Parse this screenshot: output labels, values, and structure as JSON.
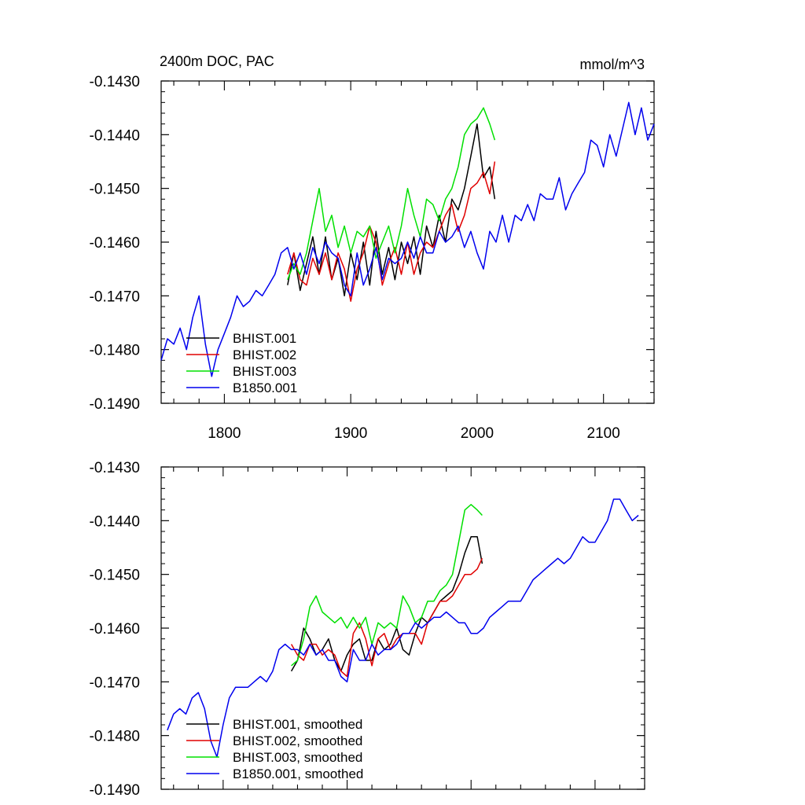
{
  "figure": {
    "title_left": "2400m DOC, PAC",
    "title_right": "mmol/m^3"
  },
  "colors": {
    "BHIST.001": "#000000",
    "BHIST.002": "#e00000",
    "BHIST.003": "#00e000",
    "B1850.001": "#0000ee"
  },
  "chart_data": [
    {
      "type": "line",
      "panel": "raw",
      "xlim": [
        1750,
        2140
      ],
      "ylim": [
        -0.149,
        -0.143
      ],
      "x_ticks": [
        "1800",
        "1900",
        "2000",
        "2100"
      ],
      "y_ticks": [
        "-0.1430",
        "-0.1440",
        "-0.1450",
        "-0.1460",
        "-0.1470",
        "-0.1480",
        "-0.1490"
      ],
      "legend": {
        "placement": "lower-left",
        "entries": [
          "BHIST.001",
          "BHIST.002",
          "BHIST.003",
          "B1850.001"
        ]
      },
      "series": [
        {
          "name": "BHIST.001",
          "color": "#000000",
          "x": [
            1850,
            1855,
            1860,
            1865,
            1870,
            1875,
            1880,
            1885,
            1890,
            1895,
            1900,
            1905,
            1910,
            1915,
            1920,
            1925,
            1930,
            1935,
            1940,
            1945,
            1950,
            1955,
            1960,
            1965,
            1970,
            1975,
            1980,
            1985,
            1990,
            1995,
            2000,
            2005,
            2010,
            2014
          ],
          "y": [
            -0.1468,
            -0.1462,
            -0.1469,
            -0.1464,
            -0.1459,
            -0.1466,
            -0.1459,
            -0.1467,
            -0.1463,
            -0.147,
            -0.1462,
            -0.1467,
            -0.146,
            -0.1468,
            -0.1458,
            -0.1466,
            -0.1461,
            -0.1467,
            -0.146,
            -0.1464,
            -0.1459,
            -0.1466,
            -0.1457,
            -0.1461,
            -0.1455,
            -0.146,
            -0.1452,
            -0.1454,
            -0.145,
            -0.1444,
            -0.1438,
            -0.1448,
            -0.1446,
            -0.1452
          ]
        },
        {
          "name": "BHIST.002",
          "color": "#e00000",
          "x": [
            1850,
            1855,
            1860,
            1865,
            1870,
            1875,
            1880,
            1885,
            1890,
            1895,
            1900,
            1905,
            1910,
            1915,
            1920,
            1925,
            1930,
            1935,
            1940,
            1945,
            1950,
            1955,
            1960,
            1965,
            1970,
            1975,
            1980,
            1985,
            1990,
            1995,
            2000,
            2005,
            2010,
            2014
          ],
          "y": [
            -0.1466,
            -0.1462,
            -0.1467,
            -0.1468,
            -0.1463,
            -0.1466,
            -0.1462,
            -0.1467,
            -0.1462,
            -0.1465,
            -0.1471,
            -0.1465,
            -0.1462,
            -0.1457,
            -0.146,
            -0.1468,
            -0.1464,
            -0.1461,
            -0.1466,
            -0.146,
            -0.1466,
            -0.1462,
            -0.146,
            -0.1461,
            -0.1458,
            -0.1455,
            -0.1453,
            -0.1458,
            -0.1455,
            -0.145,
            -0.1449,
            -0.1447,
            -0.1451,
            -0.1445
          ]
        },
        {
          "name": "BHIST.003",
          "color": "#00e000",
          "x": [
            1850,
            1855,
            1860,
            1865,
            1870,
            1875,
            1880,
            1885,
            1890,
            1895,
            1900,
            1905,
            1910,
            1915,
            1920,
            1925,
            1930,
            1935,
            1940,
            1945,
            1950,
            1955,
            1960,
            1965,
            1970,
            1975,
            1980,
            1985,
            1990,
            1995,
            2000,
            2005,
            2010,
            2014
          ],
          "y": [
            -0.1467,
            -0.1464,
            -0.1466,
            -0.1462,
            -0.1456,
            -0.145,
            -0.1458,
            -0.1455,
            -0.1461,
            -0.1457,
            -0.1462,
            -0.1458,
            -0.1459,
            -0.1457,
            -0.1463,
            -0.146,
            -0.1457,
            -0.1462,
            -0.1457,
            -0.145,
            -0.1455,
            -0.1459,
            -0.1452,
            -0.1453,
            -0.1456,
            -0.1452,
            -0.145,
            -0.1446,
            -0.144,
            -0.1438,
            -0.1437,
            -0.1435,
            -0.1438,
            -0.1441
          ]
        },
        {
          "name": "B1850.001",
          "color": "#0000ee",
          "x": [
            1750,
            1755,
            1760,
            1765,
            1770,
            1775,
            1780,
            1785,
            1790,
            1795,
            1800,
            1805,
            1810,
            1815,
            1820,
            1825,
            1830,
            1835,
            1840,
            1845,
            1850,
            1855,
            1860,
            1865,
            1870,
            1875,
            1880,
            1885,
            1890,
            1895,
            1900,
            1905,
            1910,
            1915,
            1920,
            1925,
            1930,
            1935,
            1940,
            1945,
            1950,
            1955,
            1960,
            1965,
            1970,
            1975,
            1980,
            1985,
            1990,
            1995,
            2000,
            2005,
            2010,
            2015,
            2020,
            2025,
            2030,
            2035,
            2040,
            2045,
            2050,
            2055,
            2060,
            2065,
            2070,
            2075,
            2080,
            2085,
            2090,
            2095,
            2100,
            2105,
            2110,
            2115,
            2120,
            2125,
            2130,
            2135,
            2140
          ],
          "y": [
            -0.1482,
            -0.1478,
            -0.1479,
            -0.1476,
            -0.148,
            -0.1474,
            -0.147,
            -0.1479,
            -0.1485,
            -0.148,
            -0.1477,
            -0.1474,
            -0.147,
            -0.1472,
            -0.1471,
            -0.1469,
            -0.147,
            -0.1468,
            -0.1466,
            -0.1462,
            -0.1461,
            -0.1465,
            -0.1462,
            -0.1466,
            -0.1461,
            -0.1464,
            -0.146,
            -0.1462,
            -0.1463,
            -0.1468,
            -0.147,
            -0.1462,
            -0.1468,
            -0.1465,
            -0.1461,
            -0.1467,
            -0.1463,
            -0.1464,
            -0.1463,
            -0.146,
            -0.1463,
            -0.1459,
            -0.1462,
            -0.1462,
            -0.1458,
            -0.146,
            -0.1459,
            -0.1457,
            -0.1461,
            -0.1458,
            -0.1462,
            -0.1465,
            -0.1458,
            -0.146,
            -0.1455,
            -0.146,
            -0.1455,
            -0.1456,
            -0.1453,
            -0.1456,
            -0.1451,
            -0.1452,
            -0.1452,
            -0.1448,
            -0.1454,
            -0.1451,
            -0.1449,
            -0.1447,
            -0.1441,
            -0.1442,
            -0.1446,
            -0.144,
            -0.1444,
            -0.1439,
            -0.1434,
            -0.144,
            -0.1435,
            -0.1441,
            -0.1438
          ]
        }
      ]
    },
    {
      "type": "line",
      "panel": "smoothed",
      "xlim": [
        1750,
        2140
      ],
      "ylim": [
        -0.149,
        -0.143
      ],
      "y_ticks": [
        "-0.1430",
        "-0.1440",
        "-0.1450",
        "-0.1460",
        "-0.1470",
        "-0.1480",
        "-0.1490"
      ],
      "legend": {
        "placement": "lower-left",
        "entries": [
          "BHIST.001, smoothed",
          "BHIST.002, smoothed",
          "BHIST.003, smoothed",
          "B1850.001, smoothed"
        ]
      },
      "series": [
        {
          "name": "BHIST.001, smoothed",
          "color": "#000000",
          "x": [
            1855,
            1860,
            1865,
            1870,
            1875,
            1880,
            1885,
            1890,
            1895,
            1900,
            1905,
            1910,
            1915,
            1920,
            1925,
            1930,
            1935,
            1940,
            1945,
            1950,
            1955,
            1960,
            1965,
            1970,
            1975,
            1980,
            1985,
            1990,
            1995,
            2000,
            2005,
            2009
          ],
          "y": [
            -0.1468,
            -0.1466,
            -0.146,
            -0.1462,
            -0.1465,
            -0.1464,
            -0.1462,
            -0.1466,
            -0.1468,
            -0.1465,
            -0.1463,
            -0.1462,
            -0.1466,
            -0.1466,
            -0.1462,
            -0.1464,
            -0.1463,
            -0.146,
            -0.1464,
            -0.1465,
            -0.1461,
            -0.1458,
            -0.1459,
            -0.1457,
            -0.1455,
            -0.1454,
            -0.1453,
            -0.145,
            -0.1446,
            -0.1443,
            -0.1443,
            -0.1448
          ]
        },
        {
          "name": "BHIST.002, smoothed",
          "color": "#e00000",
          "x": [
            1855,
            1860,
            1865,
            1870,
            1875,
            1880,
            1885,
            1890,
            1895,
            1900,
            1905,
            1910,
            1915,
            1920,
            1925,
            1930,
            1935,
            1940,
            1945,
            1950,
            1955,
            1960,
            1965,
            1970,
            1975,
            1980,
            1985,
            1990,
            1995,
            2000,
            2005,
            2009
          ],
          "y": [
            -0.1463,
            -0.1465,
            -0.1466,
            -0.1463,
            -0.1463,
            -0.1465,
            -0.1464,
            -0.1465,
            -0.1468,
            -0.1469,
            -0.1461,
            -0.1459,
            -0.1462,
            -0.1467,
            -0.1462,
            -0.1461,
            -0.1464,
            -0.1462,
            -0.1461,
            -0.1461,
            -0.1461,
            -0.1463,
            -0.1459,
            -0.1457,
            -0.1455,
            -0.1455,
            -0.1454,
            -0.1452,
            -0.145,
            -0.145,
            -0.1449,
            -0.1447
          ]
        },
        {
          "name": "BHIST.003, smoothed",
          "color": "#00e000",
          "x": [
            1855,
            1860,
            1865,
            1870,
            1875,
            1880,
            1885,
            1890,
            1895,
            1900,
            1905,
            1910,
            1915,
            1920,
            1925,
            1930,
            1935,
            1940,
            1945,
            1950,
            1955,
            1960,
            1965,
            1970,
            1975,
            1980,
            1985,
            1990,
            1995,
            2000,
            2005,
            2009
          ],
          "y": [
            -0.1467,
            -0.1466,
            -0.1462,
            -0.1456,
            -0.1454,
            -0.1457,
            -0.1458,
            -0.1459,
            -0.1458,
            -0.146,
            -0.1458,
            -0.146,
            -0.1458,
            -0.1463,
            -0.1459,
            -0.146,
            -0.1459,
            -0.146,
            -0.1454,
            -0.1456,
            -0.1459,
            -0.1458,
            -0.1455,
            -0.1455,
            -0.1453,
            -0.1452,
            -0.145,
            -0.1444,
            -0.1438,
            -0.1437,
            -0.1438,
            -0.1439
          ]
        },
        {
          "name": "B1850.001, smoothed",
          "color": "#0000ee",
          "x": [
            1755,
            1760,
            1765,
            1770,
            1775,
            1780,
            1785,
            1790,
            1795,
            1800,
            1805,
            1810,
            1815,
            1820,
            1825,
            1830,
            1835,
            1840,
            1845,
            1850,
            1855,
            1860,
            1865,
            1870,
            1875,
            1880,
            1885,
            1890,
            1895,
            1900,
            1905,
            1910,
            1915,
            1920,
            1925,
            1930,
            1935,
            1940,
            1945,
            1950,
            1955,
            1960,
            1965,
            1970,
            1975,
            1980,
            1985,
            1990,
            1995,
            2000,
            2005,
            2010,
            2015,
            2020,
            2025,
            2030,
            2035,
            2040,
            2045,
            2050,
            2055,
            2060,
            2065,
            2070,
            2075,
            2080,
            2085,
            2090,
            2095,
            2100,
            2105,
            2110,
            2115,
            2120,
            2125,
            2130,
            2135
          ],
          "y": [
            -0.1479,
            -0.1476,
            -0.1475,
            -0.1476,
            -0.1473,
            -0.1472,
            -0.1475,
            -0.1481,
            -0.1484,
            -0.1478,
            -0.1473,
            -0.1471,
            -0.1471,
            -0.1471,
            -0.147,
            -0.1469,
            -0.147,
            -0.1468,
            -0.1464,
            -0.1463,
            -0.1464,
            -0.1464,
            -0.1465,
            -0.1463,
            -0.1465,
            -0.1464,
            -0.1466,
            -0.1466,
            -0.1469,
            -0.147,
            -0.1464,
            -0.1466,
            -0.1466,
            -0.1463,
            -0.1465,
            -0.1464,
            -0.1464,
            -0.1463,
            -0.1461,
            -0.1461,
            -0.1459,
            -0.146,
            -0.1459,
            -0.1458,
            -0.1458,
            -0.1457,
            -0.1458,
            -0.1459,
            -0.1459,
            -0.1461,
            -0.1461,
            -0.146,
            -0.1458,
            -0.1457,
            -0.1456,
            -0.1455,
            -0.1455,
            -0.1455,
            -0.1453,
            -0.1451,
            -0.145,
            -0.1449,
            -0.1448,
            -0.1447,
            -0.1448,
            -0.1447,
            -0.1445,
            -0.1443,
            -0.1444,
            -0.1444,
            -0.1442,
            -0.144,
            -0.1436,
            -0.1436,
            -0.1438,
            -0.144,
            -0.1439
          ]
        }
      ]
    }
  ]
}
